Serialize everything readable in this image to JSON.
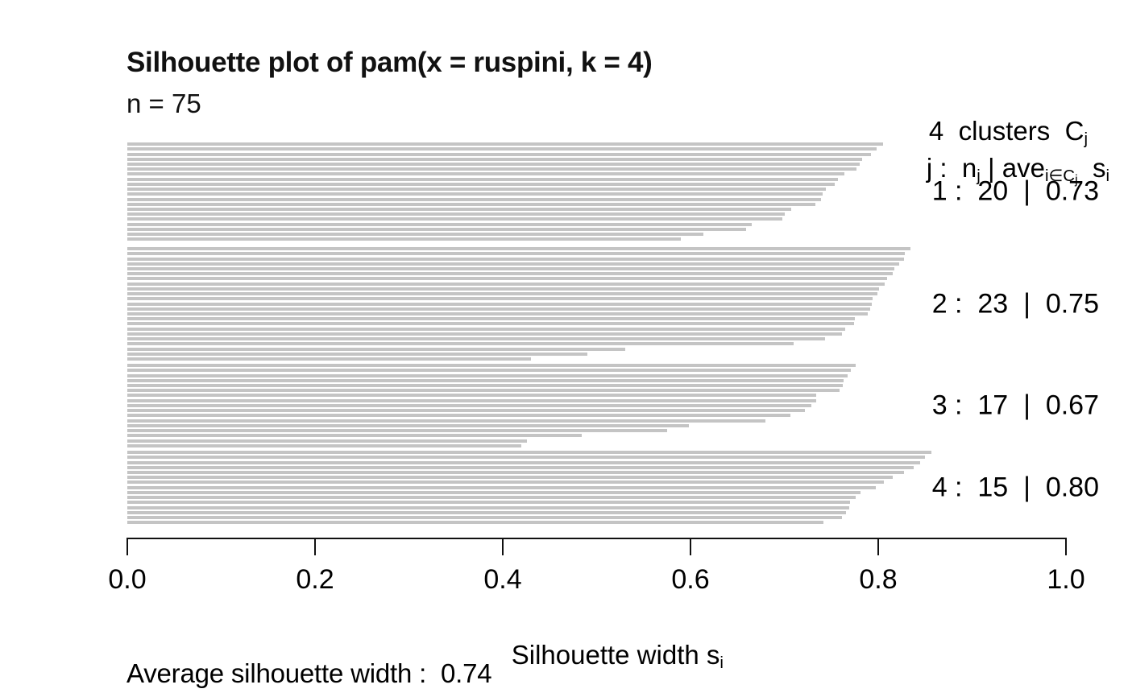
{
  "header": {
    "title": "Silhouette plot of pam(x = ruspini, k = 4)",
    "n_label": "n = 75"
  },
  "legend": {
    "line1": {
      "text": "4  clusters  C",
      "sub": "j"
    },
    "line2": {
      "p1": "j :  n",
      "s1": "j",
      "p2": " | ave",
      "s2": "i∈C",
      "s2sub": "j",
      "p3": "  s",
      "s3": "i"
    }
  },
  "axis": {
    "label_text": "Silhouette width s",
    "label_sub": "i"
  },
  "footer": {
    "average_label": "Average silhouette width :  0.74"
  },
  "chart_data": {
    "type": "bar",
    "orientation": "horizontal",
    "title": "Silhouette plot of pam(x = ruspini, k = 4)",
    "n": 75,
    "xlabel": "Silhouette width s_i",
    "xlim": [
      0,
      1
    ],
    "x_ticks": [
      0,
      0.2,
      0.4,
      0.6,
      0.8,
      1.0
    ],
    "grid": false,
    "legend_position": "top-right",
    "bar_color": "#c4c4c4",
    "average_silhouette_width": 0.74,
    "clusters": [
      {
        "j": 1,
        "n": 20,
        "ave": 0.73,
        "values": [
          0.805,
          0.798,
          0.792,
          0.783,
          0.78,
          0.777,
          0.764,
          0.757,
          0.754,
          0.744,
          0.741,
          0.739,
          0.733,
          0.707,
          0.7,
          0.698,
          0.665,
          0.659,
          0.614,
          0.59
        ]
      },
      {
        "j": 2,
        "n": 23,
        "ave": 0.75,
        "values": [
          0.834,
          0.828,
          0.827,
          0.822,
          0.817,
          0.815,
          0.809,
          0.807,
          0.801,
          0.799,
          0.794,
          0.793,
          0.791,
          0.789,
          0.775,
          0.774,
          0.765,
          0.761,
          0.743,
          0.71,
          0.53,
          0.49,
          0.43
        ]
      },
      {
        "j": 3,
        "n": 17,
        "ave": 0.67,
        "values": [
          0.776,
          0.771,
          0.767,
          0.763,
          0.762,
          0.759,
          0.734,
          0.734,
          0.729,
          0.722,
          0.706,
          0.68,
          0.598,
          0.575,
          0.484,
          0.426,
          0.42
        ]
      },
      {
        "j": 4,
        "n": 15,
        "ave": 0.8,
        "values": [
          0.857,
          0.85,
          0.845,
          0.838,
          0.827,
          0.815,
          0.806,
          0.797,
          0.781,
          0.776,
          0.77,
          0.769,
          0.766,
          0.761,
          0.742
        ]
      }
    ]
  }
}
